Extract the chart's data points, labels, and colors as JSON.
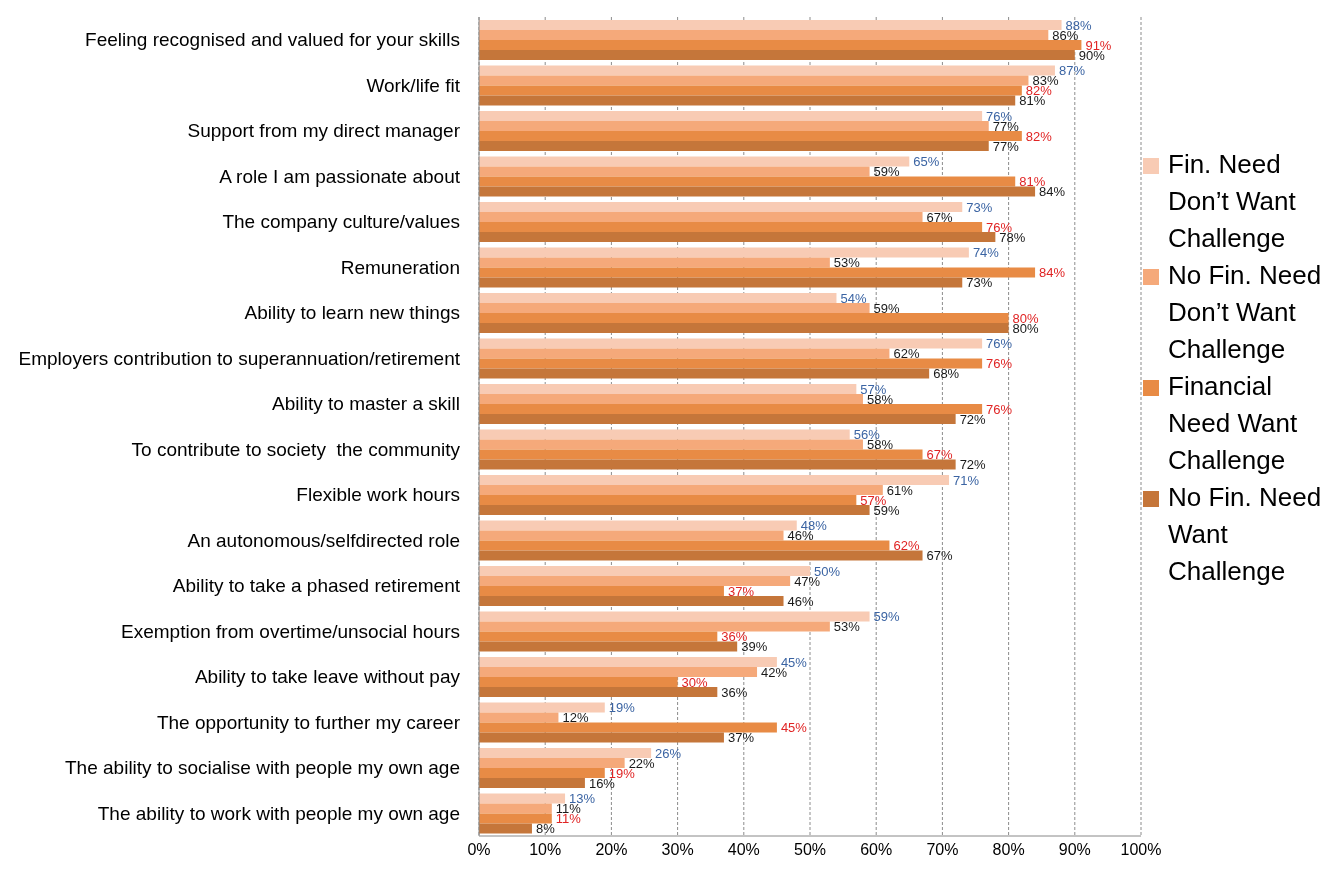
{
  "chart_data": {
    "type": "bar",
    "orientation": "horizontal",
    "categories": [
      "Feeling recognised and valued for your skills",
      "Work/life fit",
      "Support from my direct manager",
      "A role I am passionate about",
      "The company culture/values",
      "Remuneration",
      "Ability to learn new things",
      "Employers contribution to superannuation/retirement",
      "Ability to master a skill",
      "To contribute to society  the community",
      "Flexible work hours",
      "An autonomous/selfdirected role",
      "Ability to take a phased retirement",
      "Exemption from overtime/unsocial hours",
      "Ability to take leave without pay",
      "The opportunity to further my career",
      "The ability to socialise with people my own age",
      "The ability to work with people my own age"
    ],
    "series": [
      {
        "name": "Fin. Need Don’t Want Challenge",
        "color": "#f8cbb4",
        "values": [
          88,
          87,
          76,
          65,
          73,
          74,
          54,
          76,
          57,
          56,
          71,
          48,
          50,
          59,
          45,
          19,
          26,
          13
        ],
        "value_labels": [
          "88%",
          "87%",
          "76%",
          "65%",
          "73%",
          "74%",
          "54%",
          "76%",
          "57%",
          "56%",
          "71%",
          "48%",
          "50%",
          "59%",
          "45%",
          "19%",
          "26%",
          "13%"
        ]
      },
      {
        "name": "No Fin. Need Don’t Want Challenge",
        "color": "#f5a97a",
        "values": [
          86,
          83,
          77,
          59,
          67,
          53,
          59,
          62,
          58,
          58,
          61,
          46,
          47,
          53,
          42,
          12,
          22,
          11
        ],
        "value_labels": [
          "86%",
          "83%",
          "77%",
          "59%",
          "67%",
          "53%",
          "59%",
          "62%",
          "58%",
          "58%",
          "61%",
          "46%",
          "47%",
          "53%",
          "42%",
          "12%",
          "22%",
          "11%"
        ]
      },
      {
        "name": "Financial Need Want Challenge",
        "color": "#e88b45",
        "values": [
          91,
          82,
          82,
          81,
          76,
          84,
          80,
          76,
          76,
          67,
          57,
          62,
          37,
          36,
          30,
          45,
          19,
          11
        ],
        "value_labels": [
          "91%",
          "82%",
          "82%",
          "81%",
          "76%",
          "84%",
          "80%",
          "76%",
          "76%",
          "67%",
          "57%",
          "62%",
          "37%",
          "36%",
          "30%",
          "45%",
          "19%",
          "11%"
        ]
      },
      {
        "name": "No Fin. Need Want Challenge",
        "color": "#c5763a",
        "values": [
          90,
          81,
          77,
          84,
          78,
          73,
          80,
          68,
          72,
          72,
          59,
          67,
          46,
          39,
          36,
          37,
          16,
          8
        ],
        "value_labels": [
          "90%",
          "81%",
          "77%",
          "84%",
          "78%",
          "73%",
          "80%",
          "68%",
          "72%",
          "72%",
          "59%",
          "67%",
          "46%",
          "39%",
          "36%",
          "37%",
          "16%",
          "8%"
        ]
      }
    ],
    "xlim": [
      0,
      100
    ],
    "xticks": [
      {
        "value": 0,
        "label": "0%"
      },
      {
        "value": 10,
        "label": "10%"
      },
      {
        "value": 20,
        "label": "20%"
      },
      {
        "value": 30,
        "label": "30%"
      },
      {
        "value": 40,
        "label": "40%"
      },
      {
        "value": 50,
        "label": "50%"
      },
      {
        "value": 60,
        "label": "60%"
      },
      {
        "value": 70,
        "label": "70%"
      },
      {
        "value": 80,
        "label": "80%"
      },
      {
        "value": 90,
        "label": "90%"
      },
      {
        "value": 100,
        "label": "100%"
      }
    ],
    "grid": "x",
    "legend": "right"
  }
}
